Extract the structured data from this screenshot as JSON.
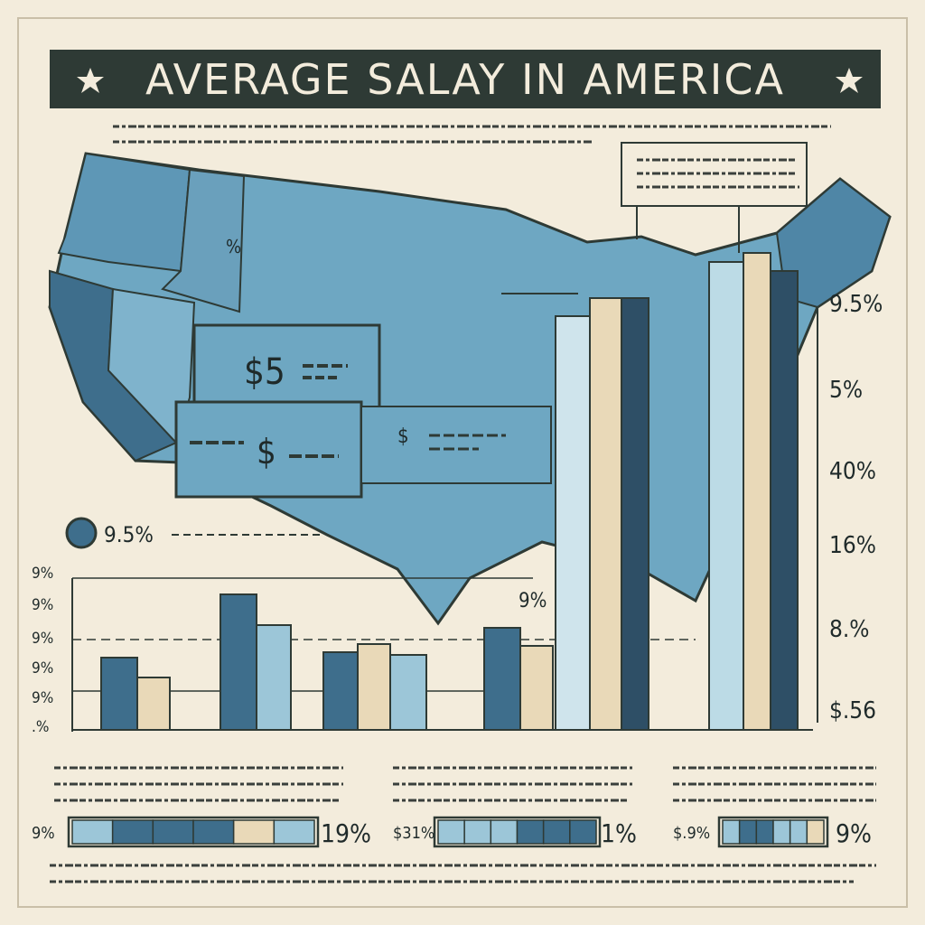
{
  "header": {
    "title": "AVERAGE SALAY IN AMERICA"
  },
  "map": {
    "top_label": "%",
    "callout_one": "$5",
    "callout_two": "$",
    "callout_three": "$",
    "marker_label": "9.5%"
  },
  "left_chart": {
    "axis_labels": [
      "9%",
      "9%",
      "9%",
      "9%",
      "9%",
      ".%"
    ],
    "center_label": "9%"
  },
  "right_chart": {
    "axis_labels": [
      "9.5%",
      "5%",
      "40%",
      "16%",
      "8.%",
      "$.56"
    ]
  },
  "footer_bars": [
    {
      "left": "9%",
      "right": "19%"
    },
    {
      "left": "$31%",
      "right": "1%"
    },
    {
      "left": "$.9%",
      "right": "9%"
    }
  ]
}
